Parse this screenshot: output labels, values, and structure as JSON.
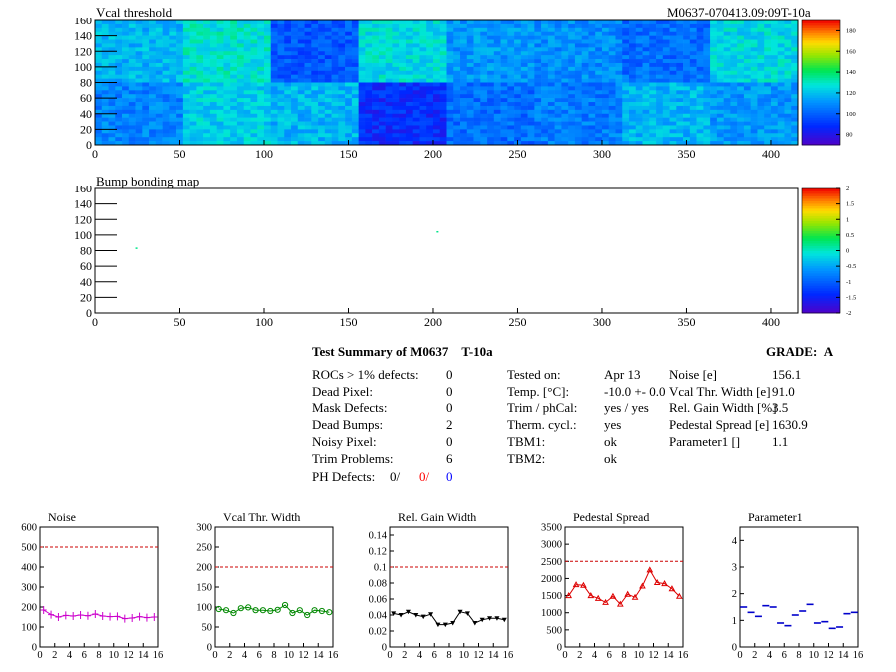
{
  "maps": [
    {
      "title": "Vcal threshold",
      "id_label": "M0637-070413.09:09T-10a",
      "x_ticks": [
        "0",
        "50",
        "100",
        "150",
        "200",
        "250",
        "300",
        "350",
        "400"
      ],
      "y_ticks": [
        "0",
        "20",
        "40",
        "60",
        "80",
        "100",
        "120",
        "140",
        "160"
      ],
      "scale_ticks": [
        "80",
        "100",
        "120",
        "140",
        "160",
        "180"
      ]
    },
    {
      "title": "Bump bonding map",
      "x_ticks": [
        "0",
        "50",
        "100",
        "150",
        "200",
        "250",
        "300",
        "350",
        "400"
      ],
      "y_ticks": [
        "0",
        "20",
        "40",
        "60",
        "80",
        "100",
        "120",
        "140",
        "160"
      ],
      "scale_ticks": [
        "-2",
        "-1.5",
        "-1",
        "-0.5",
        "0",
        "0.5",
        "1",
        "1.5",
        "2"
      ]
    }
  ],
  "summary": {
    "title": "Test Summary of M0637",
    "temp_tag": "T-10a",
    "grade_label": "GRADE:",
    "grade": "A",
    "defects": [
      {
        "label": "ROCs > 1% defects:",
        "value": "0"
      },
      {
        "label": "Dead Pixel:",
        "value": "0"
      },
      {
        "label": "Mask Defects:",
        "value": "0"
      },
      {
        "label": "Dead Bumps:",
        "value": "2"
      },
      {
        "label": "Noisy Pixel:",
        "value": "0"
      },
      {
        "label": "Trim Problems:",
        "value": "6"
      }
    ],
    "ph_defects": {
      "label": "PH Defects:",
      "v1": "0/",
      "v2": "0/",
      "v3": "0"
    },
    "conditions": [
      {
        "label": "Tested on:",
        "value": "Apr 13"
      },
      {
        "label": "Temp. [°C]:",
        "value": "-10.0 +- 0.0"
      },
      {
        "label": "Trim / phCal:",
        "value": "yes / yes"
      },
      {
        "label": "Therm. cycl.:",
        "value": "yes"
      },
      {
        "label": "TBM1:",
        "value": "ok"
      },
      {
        "label": "TBM2:",
        "value": "ok"
      }
    ],
    "results": [
      {
        "label": "Noise [e]",
        "value": "156.1"
      },
      {
        "label": "Vcal Thr. Width [e]",
        "value": "91.0"
      },
      {
        "label": "Rel. Gain Width [%]",
        "value": "3.5"
      },
      {
        "label": "Pedestal Spread [e]",
        "value": "1630.9"
      },
      {
        "label": "Parameter1 []",
        "value": "1.1"
      }
    ]
  },
  "chart_data": [
    {
      "type": "heatmap",
      "title": "Vcal threshold",
      "xlim": [
        0,
        416
      ],
      "ylim": [
        0,
        160
      ],
      "zlim": [
        70,
        190
      ],
      "roc_grid_cols": 8,
      "roc_grid_rows": 2,
      "roc_mean_top": [
        118,
        128,
        98,
        126,
        112,
        110,
        103,
        125
      ],
      "roc_mean_bottom": [
        108,
        123,
        118,
        88,
        103,
        106,
        118,
        112
      ]
    },
    {
      "type": "heatmap",
      "title": "Bump bonding map",
      "xlim": [
        0,
        416
      ],
      "ylim": [
        0,
        160
      ],
      "zlim": [
        -2,
        2
      ],
      "points": [
        {
          "x": 24,
          "y": 84,
          "z": 0.2
        },
        {
          "x": 202,
          "y": 105,
          "z": 0.2
        }
      ]
    },
    {
      "type": "line",
      "title": "Noise",
      "x": [
        0,
        1,
        2,
        3,
        4,
        5,
        6,
        7,
        8,
        9,
        10,
        11,
        12,
        13,
        14,
        15
      ],
      "values": [
        185,
        162,
        150,
        158,
        155,
        160,
        156,
        165,
        155,
        152,
        153,
        142,
        145,
        152,
        147,
        150
      ],
      "ylim": [
        0,
        600
      ],
      "y_ticks": [
        "0",
        "100",
        "200",
        "300",
        "400",
        "500",
        "600"
      ],
      "x_ticks": [
        "0",
        "2",
        "4",
        "6",
        "8",
        "10",
        "12",
        "14",
        "16"
      ],
      "threshold": 500,
      "color": "#cc00cc",
      "marker": "cross"
    },
    {
      "type": "line",
      "title": "Vcal Thr. Width",
      "x": [
        0,
        1,
        2,
        3,
        4,
        5,
        6,
        7,
        8,
        9,
        10,
        11,
        12,
        13,
        14,
        15
      ],
      "values": [
        95,
        92,
        85,
        97,
        99,
        92,
        92,
        90,
        93,
        105,
        85,
        92,
        80,
        92,
        90,
        87
      ],
      "ylim": [
        0,
        300
      ],
      "y_ticks": [
        "0",
        "50",
        "100",
        "150",
        "200",
        "250",
        "300"
      ],
      "x_ticks": [
        "0",
        "2",
        "4",
        "6",
        "8",
        "10",
        "12",
        "14",
        "16"
      ],
      "threshold": 200,
      "color": "#008800",
      "marker": "circle"
    },
    {
      "type": "line",
      "title": "Rel. Gain Width",
      "x": [
        0,
        1,
        2,
        3,
        4,
        5,
        6,
        7,
        8,
        9,
        10,
        11,
        12,
        13,
        14,
        15
      ],
      "values": [
        0.042,
        0.04,
        0.044,
        0.04,
        0.038,
        0.041,
        0.028,
        0.028,
        0.03,
        0.044,
        0.042,
        0.03,
        0.034,
        0.036,
        0.036,
        0.034
      ],
      "ylim": [
        0,
        0.15
      ],
      "y_ticks": [
        "0",
        "0.02",
        "0.04",
        "0.06",
        "0.08",
        "0.1",
        "0.12",
        "0.14"
      ],
      "y_tick_values": [
        0,
        0.02,
        0.04,
        0.06,
        0.08,
        0.1,
        0.12,
        0.14
      ],
      "x_ticks": [
        "0",
        "2",
        "4",
        "6",
        "8",
        "10",
        "12",
        "14",
        "16"
      ],
      "threshold": 0.1,
      "color": "#000000",
      "marker": "triangle-down"
    },
    {
      "type": "line",
      "title": "Pedestal Spread",
      "x": [
        0,
        1,
        2,
        3,
        4,
        5,
        6,
        7,
        8,
        9,
        10,
        11,
        12,
        13,
        14,
        15
      ],
      "values": [
        1500,
        1820,
        1800,
        1500,
        1420,
        1300,
        1480,
        1250,
        1540,
        1450,
        1780,
        2250,
        1880,
        1850,
        1700,
        1480
      ],
      "ylim": [
        0,
        3500
      ],
      "y_ticks": [
        "0",
        "500",
        "1000",
        "1500",
        "2000",
        "2500",
        "3000",
        "3500"
      ],
      "x_ticks": [
        "0",
        "2",
        "4",
        "6",
        "8",
        "10",
        "12",
        "14",
        "16"
      ],
      "threshold": 2500,
      "color": "#dd0000",
      "marker": "triangle-up"
    },
    {
      "type": "scatter",
      "title": "Parameter1",
      "x": [
        0,
        1,
        2,
        3,
        4,
        5,
        6,
        7,
        8,
        9,
        10,
        11,
        12,
        13,
        14,
        15
      ],
      "values": [
        1.5,
        1.3,
        1.15,
        1.55,
        1.5,
        0.9,
        0.8,
        1.2,
        1.35,
        1.6,
        0.9,
        0.95,
        0.7,
        0.75,
        1.25,
        1.3
      ],
      "ylim": [
        0,
        4.5
      ],
      "y_ticks": [
        "0",
        "1",
        "2",
        "3",
        "4"
      ],
      "y_tick_values": [
        0,
        1,
        2,
        3,
        4
      ],
      "x_ticks": [
        "0",
        "2",
        "4",
        "6",
        "8",
        "10",
        "12",
        "14",
        "16"
      ],
      "color": "#0000cc",
      "marker": "hbar"
    }
  ]
}
